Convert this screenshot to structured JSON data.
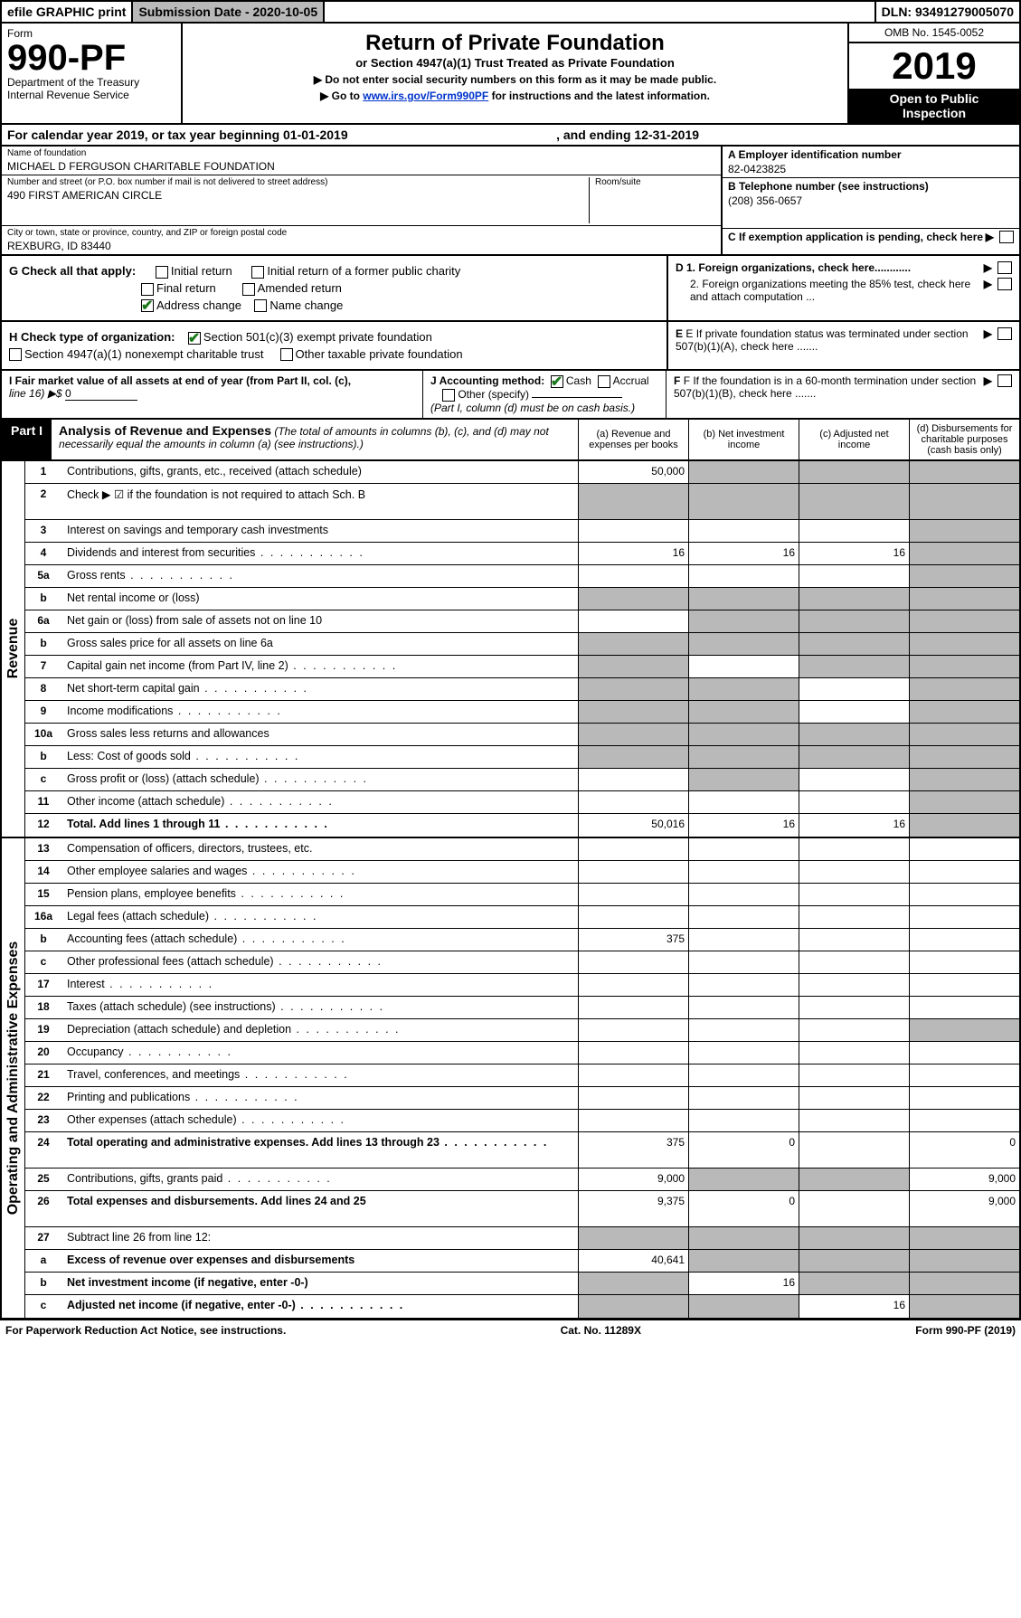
{
  "topbar": {
    "efile": "efile GRAPHIC print",
    "submission": "Submission Date - 2020-10-05",
    "dln": "DLN: 93491279005070"
  },
  "header": {
    "form_word": "Form",
    "form_no": "990-PF",
    "dept": "Department of the Treasury",
    "irs": "Internal Revenue Service",
    "title": "Return of Private Foundation",
    "subtitle": "or Section 4947(a)(1) Trust Treated as Private Foundation",
    "instr1": "▶ Do not enter social security numbers on this form as it may be made public.",
    "instr2_pre": "▶ Go to ",
    "instr2_link": "www.irs.gov/Form990PF",
    "instr2_post": " for instructions and the latest information.",
    "omb": "OMB No. 1545-0052",
    "year": "2019",
    "inspect1": "Open to Public",
    "inspect2": "Inspection"
  },
  "cal_year": {
    "pre": "For calendar year 2019, or tax year beginning 01-01-2019",
    "mid": ", and ending 12-31-2019"
  },
  "info": {
    "name_lbl": "Name of foundation",
    "name_val": "MICHAEL D FERGUSON CHARITABLE FOUNDATION",
    "addr_lbl": "Number and street (or P.O. box number if mail is not delivered to street address)",
    "addr_val": "490 FIRST AMERICAN CIRCLE",
    "room_lbl": "Room/suite",
    "city_lbl": "City or town, state or province, country, and ZIP or foreign postal code",
    "city_val": "REXBURG, ID  83440",
    "ein_lbl": "A Employer identification number",
    "ein_val": "82-0423825",
    "phone_lbl": "B Telephone number (see instructions)",
    "phone_val": "(208) 356-0657",
    "c_lbl": "C If exemption application is pending, check here"
  },
  "checks": {
    "g_lbl": "G Check all that apply:",
    "g1": "Initial return",
    "g2": "Initial return of a former public charity",
    "g3": "Final return",
    "g4": "Amended return",
    "g5": "Address change",
    "g6": "Name change",
    "h_lbl": "H Check type of organization:",
    "h1": "Section 501(c)(3) exempt private foundation",
    "h2": "Section 4947(a)(1) nonexempt charitable trust",
    "h3": "Other taxable private foundation",
    "d1": "D 1. Foreign organizations, check here............",
    "d2": "2. Foreign organizations meeting the 85% test, check here and attach computation ...",
    "e_lbl": "E  If private foundation status was terminated under section 507(b)(1)(A), check here .......",
    "i_lbl": "I Fair market value of all assets at end of year (from Part II, col. (c),",
    "i_line": "line 16) ▶$ ",
    "i_val": "0",
    "j_lbl": "J Accounting method:",
    "j1": "Cash",
    "j2": "Accrual",
    "j3": "Other (specify)",
    "j_note": "(Part I, column (d) must be on cash basis.)",
    "f_lbl": "F  If the foundation is in a 60-month termination under section 507(b)(1)(B), check here ......."
  },
  "part1": {
    "label": "Part I",
    "title": "Analysis of Revenue and Expenses",
    "note": "(The total of amounts in columns (b), (c), and (d) may not necessarily equal the amounts in column (a) (see instructions).)",
    "col_a": "(a)   Revenue and expenses per books",
    "col_b": "(b)  Net investment income",
    "col_c": "(c)  Adjusted net income",
    "col_d": "(d)  Disbursements for charitable purposes (cash basis only)",
    "side_rev": "Revenue",
    "side_exp": "Operating and Administrative Expenses"
  },
  "rows_revenue": [
    {
      "ln": "1",
      "desc": "Contributions, gifts, grants, etc., received (attach schedule)",
      "a": "50,000",
      "b": "",
      "c": "",
      "d": "",
      "shade": [
        "b",
        "c",
        "d"
      ]
    },
    {
      "ln": "2",
      "desc": "Check ▶ ☑ if the foundation is not required to attach Sch. B",
      "a": "",
      "b": "",
      "c": "",
      "d": "",
      "shade": [
        "a",
        "b",
        "c",
        "d"
      ],
      "tall": true
    },
    {
      "ln": "3",
      "desc": "Interest on savings and temporary cash investments",
      "a": "",
      "b": "",
      "c": "",
      "d": "",
      "shade": [
        "d"
      ]
    },
    {
      "ln": "4",
      "desc": "Dividends and interest from securities",
      "a": "16",
      "b": "16",
      "c": "16",
      "d": "",
      "shade": [
        "d"
      ],
      "dots": true
    },
    {
      "ln": "5a",
      "desc": "Gross rents",
      "a": "",
      "b": "",
      "c": "",
      "d": "",
      "shade": [
        "d"
      ],
      "dots": true
    },
    {
      "ln": "b",
      "desc": "Net rental income or (loss)",
      "a": "",
      "b": "",
      "c": "",
      "d": "",
      "shade": [
        "a",
        "b",
        "c",
        "d"
      ]
    },
    {
      "ln": "6a",
      "desc": "Net gain or (loss) from sale of assets not on line 10",
      "a": "",
      "b": "",
      "c": "",
      "d": "",
      "shade": [
        "b",
        "c",
        "d"
      ]
    },
    {
      "ln": "b",
      "desc": "Gross sales price for all assets on line 6a",
      "a": "",
      "b": "",
      "c": "",
      "d": "",
      "shade": [
        "a",
        "b",
        "c",
        "d"
      ]
    },
    {
      "ln": "7",
      "desc": "Capital gain net income (from Part IV, line 2)",
      "a": "",
      "b": "",
      "c": "",
      "d": "",
      "shade": [
        "a",
        "c",
        "d"
      ],
      "dots": true
    },
    {
      "ln": "8",
      "desc": "Net short-term capital gain",
      "a": "",
      "b": "",
      "c": "",
      "d": "",
      "shade": [
        "a",
        "b",
        "d"
      ],
      "dots": true
    },
    {
      "ln": "9",
      "desc": "Income modifications",
      "a": "",
      "b": "",
      "c": "",
      "d": "",
      "shade": [
        "a",
        "b",
        "d"
      ],
      "dots": true
    },
    {
      "ln": "10a",
      "desc": "Gross sales less returns and allowances",
      "a": "",
      "b": "",
      "c": "",
      "d": "",
      "shade": [
        "a",
        "b",
        "c",
        "d"
      ]
    },
    {
      "ln": "b",
      "desc": "Less: Cost of goods sold",
      "a": "",
      "b": "",
      "c": "",
      "d": "",
      "shade": [
        "a",
        "b",
        "c",
        "d"
      ],
      "dots": true
    },
    {
      "ln": "c",
      "desc": "Gross profit or (loss) (attach schedule)",
      "a": "",
      "b": "",
      "c": "",
      "d": "",
      "shade": [
        "b",
        "d"
      ],
      "dots": true
    },
    {
      "ln": "11",
      "desc": "Other income (attach schedule)",
      "a": "",
      "b": "",
      "c": "",
      "d": "",
      "shade": [
        "d"
      ],
      "dots": true
    },
    {
      "ln": "12",
      "desc": "Total. Add lines 1 through 11",
      "a": "50,016",
      "b": "16",
      "c": "16",
      "d": "",
      "shade": [
        "d"
      ],
      "bold": true,
      "dots": true
    }
  ],
  "rows_expenses": [
    {
      "ln": "13",
      "desc": "Compensation of officers, directors, trustees, etc.",
      "a": "",
      "b": "",
      "c": "",
      "d": ""
    },
    {
      "ln": "14",
      "desc": "Other employee salaries and wages",
      "a": "",
      "b": "",
      "c": "",
      "d": "",
      "dots": true
    },
    {
      "ln": "15",
      "desc": "Pension plans, employee benefits",
      "a": "",
      "b": "",
      "c": "",
      "d": "",
      "dots": true
    },
    {
      "ln": "16a",
      "desc": "Legal fees (attach schedule)",
      "a": "",
      "b": "",
      "c": "",
      "d": "",
      "dots": true
    },
    {
      "ln": "b",
      "desc": "Accounting fees (attach schedule)",
      "a": "375",
      "b": "",
      "c": "",
      "d": "",
      "dots": true
    },
    {
      "ln": "c",
      "desc": "Other professional fees (attach schedule)",
      "a": "",
      "b": "",
      "c": "",
      "d": "",
      "dots": true
    },
    {
      "ln": "17",
      "desc": "Interest",
      "a": "",
      "b": "",
      "c": "",
      "d": "",
      "dots": true
    },
    {
      "ln": "18",
      "desc": "Taxes (attach schedule) (see instructions)",
      "a": "",
      "b": "",
      "c": "",
      "d": "",
      "dots": true
    },
    {
      "ln": "19",
      "desc": "Depreciation (attach schedule) and depletion",
      "a": "",
      "b": "",
      "c": "",
      "d": "",
      "shade": [
        "d"
      ],
      "dots": true
    },
    {
      "ln": "20",
      "desc": "Occupancy",
      "a": "",
      "b": "",
      "c": "",
      "d": "",
      "dots": true
    },
    {
      "ln": "21",
      "desc": "Travel, conferences, and meetings",
      "a": "",
      "b": "",
      "c": "",
      "d": "",
      "dots": true
    },
    {
      "ln": "22",
      "desc": "Printing and publications",
      "a": "",
      "b": "",
      "c": "",
      "d": "",
      "dots": true
    },
    {
      "ln": "23",
      "desc": "Other expenses (attach schedule)",
      "a": "",
      "b": "",
      "c": "",
      "d": "",
      "dots": true
    },
    {
      "ln": "24",
      "desc": "Total operating and administrative expenses. Add lines 13 through 23",
      "a": "375",
      "b": "0",
      "c": "",
      "d": "0",
      "bold": true,
      "dots": true,
      "tall": true
    },
    {
      "ln": "25",
      "desc": "Contributions, gifts, grants paid",
      "a": "9,000",
      "b": "",
      "c": "",
      "d": "9,000",
      "shade": [
        "b",
        "c"
      ],
      "dots": true
    },
    {
      "ln": "26",
      "desc": "Total expenses and disbursements. Add lines 24 and 25",
      "a": "9,375",
      "b": "0",
      "c": "",
      "d": "9,000",
      "bold": true,
      "tall": true
    },
    {
      "ln": "27",
      "desc": "Subtract line 26 from line 12:",
      "a": "",
      "b": "",
      "c": "",
      "d": "",
      "shade": [
        "a",
        "b",
        "c",
        "d"
      ]
    },
    {
      "ln": "a",
      "desc": "Excess of revenue over expenses and disbursements",
      "a": "40,641",
      "b": "",
      "c": "",
      "d": "",
      "shade": [
        "b",
        "c",
        "d"
      ],
      "bold": true
    },
    {
      "ln": "b",
      "desc": "Net investment income (if negative, enter -0-)",
      "a": "",
      "b": "16",
      "c": "",
      "d": "",
      "shade": [
        "a",
        "c",
        "d"
      ],
      "bold": true
    },
    {
      "ln": "c",
      "desc": "Adjusted net income (if negative, enter -0-)",
      "a": "",
      "b": "",
      "c": "16",
      "d": "",
      "shade": [
        "a",
        "b",
        "d"
      ],
      "bold": true,
      "dots": true
    }
  ],
  "footer": {
    "left": "For Paperwork Reduction Act Notice, see instructions.",
    "mid": "Cat. No. 11289X",
    "right": "Form 990-PF (2019)"
  },
  "colors": {
    "shade": "#b9b9b9",
    "link": "#0033cc",
    "check_green": "#1a7a1a"
  }
}
